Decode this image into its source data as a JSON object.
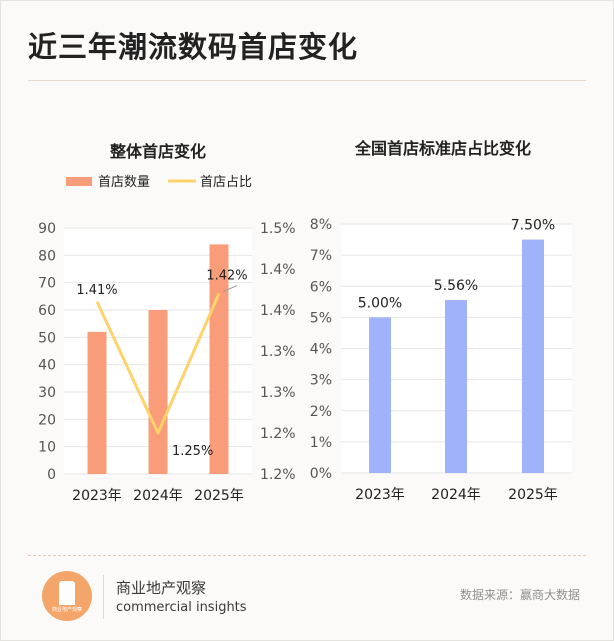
{
  "title": "近三年潮流数码首店变化",
  "chart_data": [
    {
      "type": "bar",
      "title": "整体首店变化",
      "categories": [
        "2023年",
        "2024年",
        "2025年"
      ],
      "series": [
        {
          "name": "首店数量",
          "type": "bar",
          "axis": "left",
          "color": "#f89c7a",
          "values": [
            52,
            60,
            84
          ]
        },
        {
          "name": "首店占比",
          "type": "line",
          "axis": "right",
          "color": "#fdd36a",
          "values": [
            1.41,
            1.25,
            1.42
          ],
          "labels": [
            "1.41%",
            "1.25%",
            "1.42%"
          ]
        }
      ],
      "ylim_left": [
        0,
        90
      ],
      "yticks_left": [
        "0",
        "10",
        "20",
        "30",
        "40",
        "50",
        "60",
        "70",
        "80",
        "90"
      ],
      "ylim_right": [
        1.2,
        1.5
      ],
      "yticks_right": [
        "1.2%",
        "1.2%",
        "1.3%",
        "1.3%",
        "1.4%",
        "1.4%",
        "1.5%"
      ],
      "legend": "top",
      "grid": true
    },
    {
      "type": "bar",
      "title": "全国首店标准店占比变化",
      "categories": [
        "2023年",
        "2024年",
        "2025年"
      ],
      "series": [
        {
          "name": "",
          "color": "#a0b3fa",
          "values": [
            5.0,
            5.56,
            7.5
          ],
          "labels": [
            "5.00%",
            "5.56%",
            "7.50%"
          ]
        }
      ],
      "ylim": [
        0,
        8
      ],
      "yticks": [
        "0%",
        "1%",
        "2%",
        "3%",
        "4%",
        "5%",
        "6%",
        "7%",
        "8%"
      ],
      "grid": true
    }
  ],
  "footer": {
    "brand_name": "商业地产观察",
    "brand_sub": "commercial insights",
    "logo_text": "商业地产观察",
    "source": "数据来源：赢商大数据"
  }
}
